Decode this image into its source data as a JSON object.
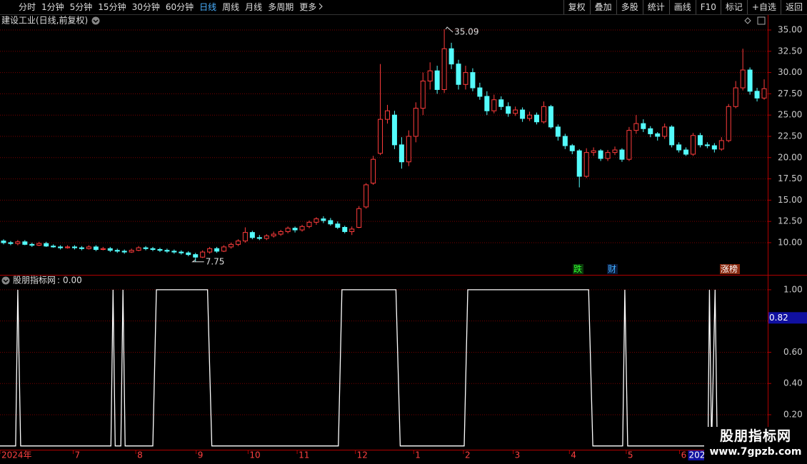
{
  "toolbar": {
    "left": [
      "分时",
      "1分钟",
      "5分钟",
      "15分钟",
      "30分钟",
      "60分钟",
      "日线",
      "周线",
      "月线",
      "多周期",
      "更多"
    ],
    "active": "日线",
    "right": [
      "复权",
      "叠加",
      "多股",
      "统计",
      "画线",
      "F10",
      "标记",
      "+自选",
      "返回"
    ]
  },
  "watermark": {
    "title": "股朋指标网",
    "url": "www.7gpzb.com"
  },
  "chart_data": [
    {
      "type": "candlestick",
      "title": "建设工业(日线,前复权)",
      "open": [
        10.2,
        10.0,
        9.9,
        10.1,
        9.8,
        9.7,
        9.9,
        9.6,
        9.5,
        9.4,
        9.5,
        9.4,
        9.3,
        9.5,
        9.2,
        9.3,
        9.1,
        9.0,
        8.9,
        9.1,
        9.4,
        9.3,
        9.2,
        9.1,
        9.0,
        8.9,
        8.8,
        8.6,
        8.3,
        8.9,
        9.3,
        9.0,
        9.5,
        9.8,
        10.2,
        11.2,
        10.6,
        10.5,
        10.8,
        11.0,
        11.3,
        11.7,
        11.5,
        11.9,
        12.4,
        12.8,
        12.6,
        12.2,
        11.8,
        11.3,
        11.8,
        14.2,
        17.0,
        20.5,
        24.5,
        25.0,
        21.5,
        19.5,
        22.5,
        25.8,
        29.0,
        30.2,
        28.0,
        32.8,
        31.0,
        28.6,
        30.0,
        28.2,
        27.2,
        25.5,
        26.8,
        26.0,
        25.2,
        25.6,
        24.6,
        25.0,
        24.2,
        26.0,
        23.6,
        22.5,
        21.4,
        20.8,
        17.8,
        20.6,
        20.8,
        19.9,
        20.6,
        20.9,
        19.8,
        23.2,
        24.0,
        23.4,
        22.8,
        22.5,
        23.6,
        21.5,
        20.9,
        20.4,
        22.6,
        21.5,
        21.4,
        21.0,
        22.0,
        26.0,
        28.2,
        30.3,
        27.8,
        27.0
      ],
      "high": [
        10.4,
        10.2,
        10.3,
        10.3,
        10.0,
        10.1,
        10.1,
        9.8,
        9.7,
        9.7,
        9.7,
        9.6,
        9.7,
        9.7,
        9.5,
        9.5,
        9.3,
        9.2,
        9.3,
        9.6,
        9.6,
        9.5,
        9.4,
        9.3,
        9.2,
        9.1,
        9.0,
        8.8,
        9.1,
        9.5,
        9.5,
        9.7,
        10.0,
        10.4,
        11.8,
        11.4,
        10.9,
        11.0,
        11.3,
        11.5,
        11.9,
        11.9,
        12.1,
        12.6,
        13.0,
        13.1,
        12.9,
        12.5,
        12.0,
        11.9,
        14.3,
        17.0,
        20.2,
        31.0,
        26.2,
        25.5,
        22.4,
        23.2,
        26.5,
        30.0,
        31.2,
        30.8,
        35.09,
        33.5,
        31.5,
        30.8,
        30.5,
        28.8,
        27.8,
        27.4,
        27.2,
        26.5,
        26.0,
        25.9,
        25.4,
        25.3,
        26.6,
        26.2,
        23.9,
        22.8,
        21.6,
        21.0,
        21.1,
        21.2,
        21.0,
        20.9,
        21.3,
        21.1,
        23.6,
        25.0,
        24.5,
        23.7,
        23.0,
        24.0,
        23.8,
        21.8,
        21.2,
        22.9,
        22.9,
        21.8,
        21.7,
        22.4,
        26.3,
        29.0,
        32.8,
        30.6,
        28.2,
        29.2
      ],
      "low": [
        9.8,
        9.7,
        9.7,
        9.7,
        9.5,
        9.6,
        9.5,
        9.4,
        9.2,
        9.3,
        9.2,
        9.1,
        9.2,
        9.0,
        9.1,
        8.9,
        8.8,
        8.7,
        8.8,
        9.0,
        9.1,
        9.0,
        8.9,
        8.8,
        8.7,
        8.6,
        8.4,
        7.75,
        8.2,
        8.7,
        8.8,
        8.9,
        9.3,
        9.6,
        10.0,
        10.4,
        10.3,
        10.3,
        10.6,
        10.8,
        11.1,
        11.2,
        11.3,
        11.7,
        12.1,
        12.3,
        12.0,
        11.6,
        11.1,
        10.9,
        11.7,
        14.0,
        16.8,
        20.3,
        24.0,
        21.0,
        18.7,
        19.0,
        21.8,
        25.0,
        28.0,
        27.5,
        27.6,
        30.4,
        28.0,
        28.0,
        27.8,
        26.8,
        25.0,
        25.2,
        25.6,
        24.8,
        24.9,
        24.2,
        24.3,
        23.9,
        24.0,
        23.4,
        22.0,
        21.0,
        20.4,
        16.5,
        17.6,
        20.2,
        19.6,
        19.6,
        20.3,
        19.5,
        19.6,
        22.8,
        23.0,
        22.4,
        22.0,
        22.2,
        21.2,
        20.6,
        20.2,
        20.2,
        21.2,
        21.1,
        20.6,
        20.8,
        21.8,
        25.8,
        27.9,
        27.4,
        26.6,
        26.8
      ],
      "close": [
        10.0,
        9.9,
        10.1,
        9.8,
        9.7,
        9.9,
        9.6,
        9.5,
        9.4,
        9.5,
        9.4,
        9.3,
        9.5,
        9.2,
        9.3,
        9.1,
        9.0,
        8.9,
        9.1,
        9.4,
        9.3,
        9.2,
        9.1,
        9.0,
        8.9,
        8.8,
        8.6,
        8.3,
        8.9,
        9.3,
        9.0,
        9.5,
        9.8,
        10.2,
        11.2,
        10.6,
        10.5,
        10.8,
        11.0,
        11.3,
        11.7,
        11.5,
        11.9,
        12.4,
        12.8,
        12.6,
        12.2,
        11.8,
        11.3,
        11.6,
        14.0,
        16.8,
        19.8,
        24.5,
        25.5,
        21.5,
        19.5,
        22.5,
        25.8,
        29.0,
        30.2,
        28.0,
        32.8,
        31.0,
        28.6,
        30.0,
        28.2,
        27.2,
        25.5,
        26.8,
        26.0,
        25.2,
        25.6,
        24.6,
        25.0,
        24.2,
        26.0,
        23.6,
        22.5,
        21.4,
        20.8,
        17.8,
        20.6,
        20.8,
        19.9,
        20.6,
        20.9,
        19.8,
        23.2,
        24.0,
        23.4,
        22.8,
        22.5,
        23.6,
        21.5,
        20.9,
        20.4,
        22.6,
        21.5,
        21.4,
        21.0,
        22.0,
        26.0,
        28.2,
        30.3,
        27.8,
        27.0,
        28.1
      ],
      "up_color": "#ff3c3c",
      "down_color": "#54fcfc",
      "ylim": [
        6.22,
        36.68
      ],
      "yticks": [
        {
          "value": 10,
          "label": "10.00"
        },
        {
          "value": 12.5,
          "label": "12.50"
        },
        {
          "value": 15,
          "label": "15.00"
        },
        {
          "value": 17.5,
          "label": "17.50"
        },
        {
          "value": 20,
          "label": "20.00"
        },
        {
          "value": 22.5,
          "label": "22.50"
        },
        {
          "value": 25,
          "label": "25.00"
        },
        {
          "value": 27.5,
          "label": "27.50"
        },
        {
          "value": 30,
          "label": "30.00"
        },
        {
          "value": 32.5,
          "label": "32.50"
        },
        {
          "value": 35,
          "label": "35.00"
        }
      ],
      "grid": true,
      "high_label": {
        "value": 35.09,
        "label": "35.09"
      },
      "low_label": {
        "value": 7.75,
        "label": "7.75"
      },
      "events": [
        {
          "label": "跌",
          "color": "#30ff30"
        },
        {
          "label": "财",
          "color": "#40b0ff"
        },
        {
          "label": "涨榜",
          "color": "#ffffff"
        }
      ]
    },
    {
      "type": "line",
      "title": "股朋指标网",
      "title_value": "0.00",
      "color": "#ffffff",
      "x": [
        0,
        2.2,
        2.5,
        2.9,
        15.6,
        15.9,
        16.2,
        17.0,
        17.3,
        17.6,
        21.5,
        22.0,
        29.2,
        29.8,
        47.6,
        48.1,
        55.7,
        56.3,
        65.3,
        65.8,
        82.8,
        83.4,
        87.6,
        87.9,
        88.3,
        99.6,
        99.8,
        100.1,
        100.6,
        100.9,
        101.0
      ],
      "values": [
        0,
        0,
        1,
        0,
        0,
        1,
        0,
        0,
        1,
        0,
        0,
        1,
        1,
        0,
        0,
        1,
        1,
        0,
        0,
        1,
        1,
        0,
        0,
        1,
        0,
        0,
        1,
        0,
        1,
        0,
        0
      ],
      "xlim": [
        0,
        108
      ],
      "ylim": [
        -0.024,
        1.091
      ],
      "yticks": [
        {
          "value": 0.2,
          "label": "0.20"
        },
        {
          "value": 0.4,
          "label": "0.40"
        },
        {
          "value": 0.6,
          "label": "0.60"
        },
        {
          "value": 0.8,
          "label": "0.80"
        },
        {
          "value": 1,
          "label": "1.00"
        }
      ],
      "grid": true,
      "cursor_value": {
        "value": 0.82,
        "label": "0.82"
      },
      "xticks": [
        {
          "value": 0,
          "label": "2024年"
        },
        {
          "value": 10.3,
          "label": "7"
        },
        {
          "value": 19.1,
          "label": "8"
        },
        {
          "value": 27.6,
          "label": "9"
        },
        {
          "value": 34.9,
          "label": "10"
        },
        {
          "value": 41.8,
          "label": "11"
        },
        {
          "value": 50,
          "label": "12"
        },
        {
          "value": 58.2,
          "label": "1"
        },
        {
          "value": 65.2,
          "label": "2"
        },
        {
          "value": 72.2,
          "label": "3"
        },
        {
          "value": 80.1,
          "label": "4"
        },
        {
          "value": 88.1,
          "label": "5"
        },
        {
          "value": 95.6,
          "label": "6"
        }
      ],
      "cursor_date": {
        "value": 96.8,
        "label": "202"
      }
    }
  ]
}
